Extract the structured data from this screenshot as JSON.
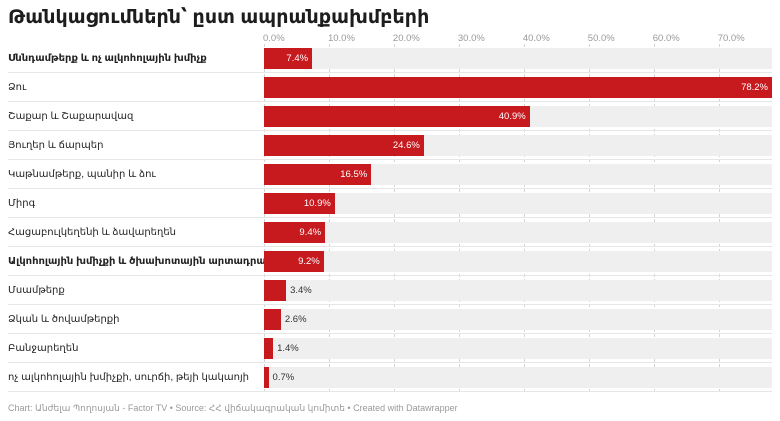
{
  "chart_data": {
    "type": "bar",
    "orientation": "horizontal",
    "title": "Թանկացումներն՝ ըստ ապրանքախմբերի",
    "xlim": [
      0,
      78.2
    ],
    "ticks": [
      "0.0%",
      "10.0%",
      "20.0%",
      "30.0%",
      "40.0%",
      "50.0%",
      "60.0%",
      "70.0%"
    ],
    "tick_values": [
      0,
      10,
      20,
      30,
      40,
      50,
      60,
      70
    ],
    "categories": [
      {
        "label": "Սննդամթերք և ոչ ալկոհոլային խմիչք",
        "bold": true,
        "value": 7.4,
        "value_label": "7.4%"
      },
      {
        "label": "Ձու",
        "bold": false,
        "value": 78.2,
        "value_label": "78.2%"
      },
      {
        "label": "Շաքար և Շաքարավազ",
        "bold": false,
        "value": 40.9,
        "value_label": "40.9%"
      },
      {
        "label": "Յուղեր և ճարպեր",
        "bold": false,
        "value": 24.6,
        "value_label": "24.6%"
      },
      {
        "label": "Կաթնամթերք, պանիր և ձու",
        "bold": false,
        "value": 16.5,
        "value_label": "16.5%"
      },
      {
        "label": "Միրգ",
        "bold": false,
        "value": 10.9,
        "value_label": "10.9%"
      },
      {
        "label": "Հացաբուլկեղենի և ձավարեղեն",
        "bold": false,
        "value": 9.4,
        "value_label": "9.4%"
      },
      {
        "label": "Ալկոհոլային խմիչքի և ծխախոտային արտադրատեսակներ",
        "bold": true,
        "value": 9.2,
        "value_label": "9.2%"
      },
      {
        "label": "Մսամթերք",
        "bold": false,
        "value": 3.4,
        "value_label": "3.4%"
      },
      {
        "label": "Ձկան և ծովամթերքի",
        "bold": false,
        "value": 2.6,
        "value_label": "2.6%"
      },
      {
        "label": "Բանջարեղեն",
        "bold": false,
        "value": 1.4,
        "value_label": "1.4%"
      },
      {
        "label": "ոչ ալկոհոլային խմիչքի, սուրճի, թեյի կակաոյի",
        "bold": false,
        "value": 0.7,
        "value_label": "0.7%"
      }
    ],
    "bar_color": "#c71a1f",
    "track_color": "#efefef",
    "grid": true
  },
  "footer": "Chart: Անժելա Պողոսյան - Factor TV • Source: ՀՀ վիճակագրական կոմիտե • Created with Datawrapper"
}
